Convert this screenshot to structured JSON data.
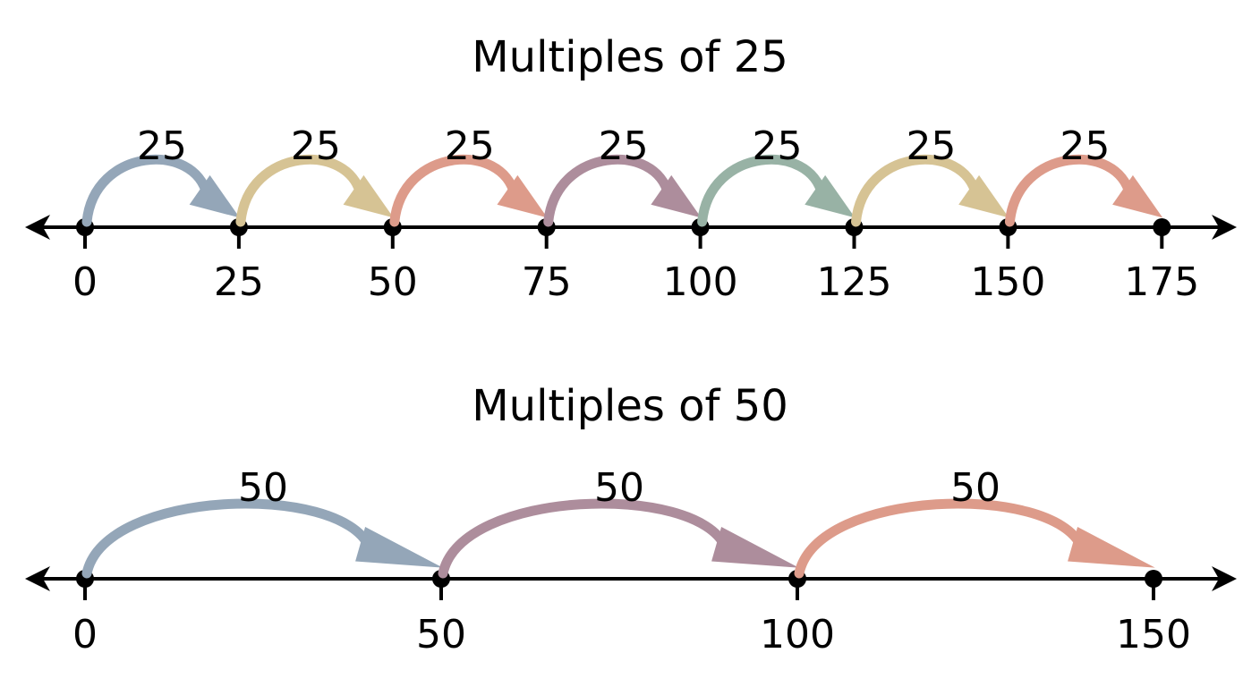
{
  "lines": [
    {
      "title": "Multiples of 25",
      "step": 25,
      "ticks": [
        "0",
        "25",
        "50",
        "75",
        "100",
        "125",
        "150",
        "175"
      ],
      "jumps": [
        {
          "label": "25",
          "from": 0,
          "to": 25,
          "color": "#94a6b8"
        },
        {
          "label": "25",
          "from": 25,
          "to": 50,
          "color": "#d6c394"
        },
        {
          "label": "25",
          "from": 50,
          "to": 75,
          "color": "#dd9b8a"
        },
        {
          "label": "25",
          "from": 75,
          "to": 100,
          "color": "#ad8d9c"
        },
        {
          "label": "25",
          "from": 100,
          "to": 125,
          "color": "#98b2a5"
        },
        {
          "label": "25",
          "from": 125,
          "to": 150,
          "color": "#d6c394"
        },
        {
          "label": "25",
          "from": 150,
          "to": 175,
          "color": "#dd9b8a"
        }
      ]
    },
    {
      "title": "Multiples of 50",
      "step": 50,
      "ticks": [
        "0",
        "50",
        "100",
        "150"
      ],
      "jumps": [
        {
          "label": "50",
          "from": 0,
          "to": 50,
          "color": "#94a6b8"
        },
        {
          "label": "50",
          "from": 50,
          "to": 100,
          "color": "#ad8d9c"
        },
        {
          "label": "50",
          "from": 100,
          "to": 150,
          "color": "#dd9b8a"
        }
      ]
    }
  ]
}
